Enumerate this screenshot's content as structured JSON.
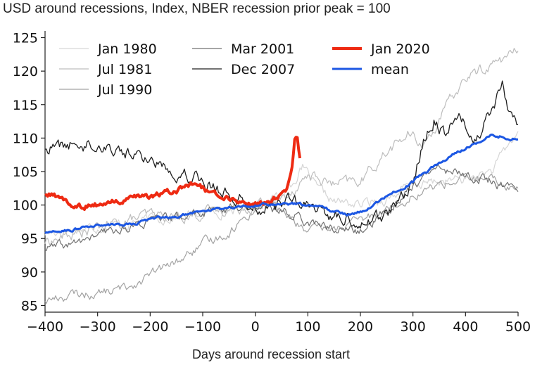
{
  "chart_data": {
    "type": "line",
    "title": "USD around recessions, Index, NBER recession prior peak = 100",
    "xlabel": "Days around recession start",
    "ylabel": "",
    "xlim": [
      -400,
      500
    ],
    "ylim": [
      84,
      126
    ],
    "xticks": [
      -400,
      -300,
      -200,
      -100,
      0,
      100,
      200,
      300,
      400,
      500
    ],
    "yticks": [
      85,
      90,
      95,
      100,
      105,
      110,
      115,
      120,
      125
    ],
    "xtick_labels": [
      "−400",
      "−300",
      "−200",
      "−100",
      "0",
      "100",
      "200",
      "300",
      "400",
      "500"
    ],
    "ytick_labels": [
      "85",
      "90",
      "95",
      "100",
      "105",
      "110",
      "115",
      "120",
      "125"
    ],
    "legend_position": "top-left",
    "series": [
      {
        "name": "Jan 1980",
        "color": "#d6d6d6",
        "width": 1.2,
        "points": [
          [
            -400,
            95.8
          ],
          [
            -350,
            96.3
          ],
          [
            -300,
            96.8
          ],
          [
            -250,
            97.2
          ],
          [
            -200,
            97.8
          ],
          [
            -150,
            98.3
          ],
          [
            -100,
            98.8
          ],
          [
            -50,
            99.3
          ],
          [
            0,
            100
          ],
          [
            50,
            101.5
          ],
          [
            90,
            105.5
          ],
          [
            100,
            104.5
          ],
          [
            120,
            102
          ],
          [
            150,
            100.5
          ],
          [
            200,
            100
          ],
          [
            250,
            101
          ],
          [
            300,
            103
          ],
          [
            350,
            103.5
          ],
          [
            400,
            103.8
          ],
          [
            450,
            105
          ],
          [
            500,
            111
          ]
        ]
      },
      {
        "name": "Jul 1981",
        "color": "#bdbdbd",
        "width": 1.2,
        "points": [
          [
            -400,
            94.5
          ],
          [
            -350,
            95.5
          ],
          [
            -300,
            96.5
          ],
          [
            -250,
            97.5
          ],
          [
            -200,
            98.5
          ],
          [
            -150,
            98.2
          ],
          [
            -100,
            98.8
          ],
          [
            -50,
            99.5
          ],
          [
            0,
            100
          ],
          [
            50,
            101
          ],
          [
            80,
            103
          ],
          [
            100,
            104.5
          ],
          [
            150,
            103
          ],
          [
            200,
            103.5
          ],
          [
            250,
            108
          ],
          [
            290,
            110.5
          ],
          [
            320,
            109
          ],
          [
            360,
            114
          ],
          [
            400,
            119
          ],
          [
            450,
            121
          ],
          [
            500,
            123
          ]
        ]
      },
      {
        "name": "Jul 1990",
        "color": "#a3a3a3",
        "width": 1.2,
        "points": [
          [
            -400,
            85.8
          ],
          [
            -350,
            86.5
          ],
          [
            -300,
            86.8
          ],
          [
            -250,
            87.5
          ],
          [
            -200,
            89.5
          ],
          [
            -150,
            91.5
          ],
          [
            -100,
            94
          ],
          [
            -50,
            96
          ],
          [
            0,
            99.5
          ],
          [
            30,
            100.5
          ],
          [
            50,
            99
          ],
          [
            100,
            96
          ],
          [
            150,
            96.5
          ],
          [
            200,
            97.5
          ],
          [
            250,
            99.5
          ],
          [
            300,
            101.5
          ],
          [
            350,
            103
          ],
          [
            400,
            104
          ],
          [
            450,
            103.5
          ],
          [
            500,
            102.5
          ]
        ]
      },
      {
        "name": "Mar 2001",
        "color": "#707070",
        "width": 1.2,
        "points": [
          [
            -400,
            93.5
          ],
          [
            -350,
            94
          ],
          [
            -300,
            95.5
          ],
          [
            -250,
            96.5
          ],
          [
            -200,
            97.5
          ],
          [
            -150,
            98
          ],
          [
            -100,
            99
          ],
          [
            -50,
            99.5
          ],
          [
            0,
            100
          ],
          [
            50,
            99
          ],
          [
            80,
            98.5
          ],
          [
            100,
            97.5
          ],
          [
            150,
            96.5
          ],
          [
            200,
            96
          ],
          [
            250,
            99
          ],
          [
            300,
            103
          ],
          [
            350,
            105.5
          ],
          [
            400,
            104.5
          ],
          [
            450,
            103.5
          ],
          [
            500,
            102
          ]
        ]
      },
      {
        "name": "Dec 2007",
        "color": "#1f1f1f",
        "width": 1.3,
        "points": [
          [
            -400,
            108.5
          ],
          [
            -350,
            109
          ],
          [
            -300,
            109.2
          ],
          [
            -250,
            108
          ],
          [
            -200,
            106.8
          ],
          [
            -150,
            105.2
          ],
          [
            -100,
            104
          ],
          [
            -50,
            101.5
          ],
          [
            0,
            100
          ],
          [
            30,
            99.5
          ],
          [
            60,
            100.8
          ],
          [
            100,
            99.5
          ],
          [
            150,
            98.5
          ],
          [
            200,
            97.5
          ],
          [
            250,
            98.5
          ],
          [
            300,
            103
          ],
          [
            320,
            110
          ],
          [
            340,
            113
          ],
          [
            360,
            111
          ],
          [
            380,
            113.5
          ],
          [
            400,
            112
          ],
          [
            420,
            110
          ],
          [
            450,
            114.5
          ],
          [
            470,
            118
          ],
          [
            490,
            112
          ],
          [
            500,
            112
          ]
        ]
      },
      {
        "name": "Jan 2020",
        "color": "#ee2a12",
        "width": 4,
        "points": [
          [
            -400,
            101.5
          ],
          [
            -370,
            101.2
          ],
          [
            -350,
            100
          ],
          [
            -330,
            99.8
          ],
          [
            -300,
            100
          ],
          [
            -250,
            100.6
          ],
          [
            -200,
            101.3
          ],
          [
            -150,
            102.2
          ],
          [
            -120,
            102.8
          ],
          [
            -100,
            102.5
          ],
          [
            -80,
            101.8
          ],
          [
            -50,
            101
          ],
          [
            -20,
            100.5
          ],
          [
            0,
            100
          ],
          [
            20,
            100.4
          ],
          [
            50,
            101.4
          ],
          [
            60,
            102.4
          ],
          [
            70,
            105.5
          ],
          [
            75,
            109.5
          ],
          [
            80,
            110
          ],
          [
            85,
            107
          ]
        ]
      },
      {
        "name": "mean",
        "color": "#1c57e3",
        "width": 3,
        "points": [
          [
            -400,
            95.8
          ],
          [
            -350,
            96.3
          ],
          [
            -300,
            97
          ],
          [
            -250,
            97
          ],
          [
            -200,
            97.8
          ],
          [
            -150,
            98.3
          ],
          [
            -100,
            99.2
          ],
          [
            -50,
            99.6
          ],
          [
            0,
            100
          ],
          [
            50,
            100.3
          ],
          [
            100,
            100
          ],
          [
            150,
            99
          ],
          [
            180,
            98.6
          ],
          [
            200,
            99
          ],
          [
            250,
            101.2
          ],
          [
            300,
            103.4
          ],
          [
            350,
            106.5
          ],
          [
            400,
            108.5
          ],
          [
            450,
            110.5
          ],
          [
            500,
            109.8
          ]
        ]
      }
    ]
  }
}
